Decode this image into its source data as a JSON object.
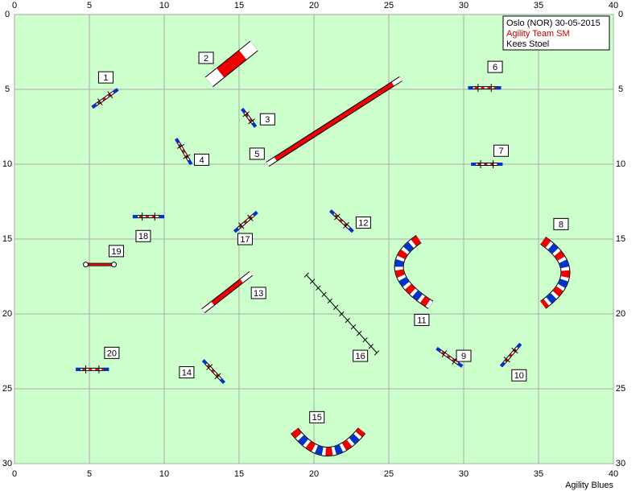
{
  "info": {
    "event": "Oslo (NOR) 30-05-2015",
    "class": "Agility Team SM",
    "judge": "Kees Stoel"
  },
  "axes": {
    "x_ticks": [
      0,
      5,
      10,
      15,
      20,
      25,
      30,
      35,
      40
    ],
    "y_ticks": [
      0,
      5,
      10,
      15,
      20,
      25,
      30
    ]
  },
  "obstacles": [
    "1",
    "2",
    "3",
    "4",
    "5",
    "6",
    "7",
    "8",
    "9",
    "10",
    "11",
    "12",
    "13",
    "14",
    "15",
    "16",
    "17",
    "18",
    "19",
    "20"
  ],
  "footer": "Agility Blues"
}
